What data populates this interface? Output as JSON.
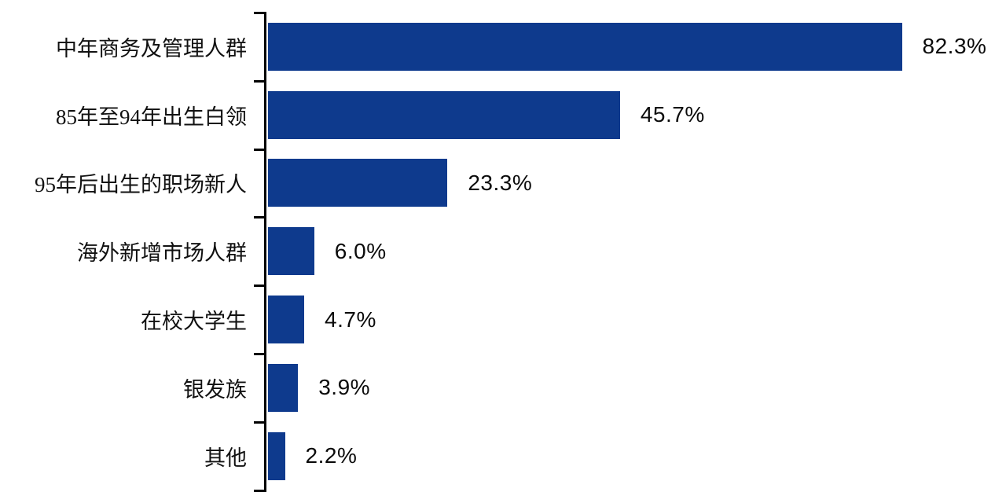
{
  "chart_data": {
    "type": "bar",
    "orientation": "horizontal",
    "title": "",
    "xlabel": "",
    "ylabel": "",
    "categories": [
      "中年商务及管理人群",
      "85年至94年出生白领",
      "95年后出生的职场新人",
      "海外新增市场人群",
      "在校大学生",
      "银发族",
      "其他"
    ],
    "values": [
      82.3,
      45.7,
      23.3,
      6.0,
      4.7,
      3.9,
      2.2
    ],
    "value_labels": [
      "82.3%",
      "45.7%",
      "23.3%",
      "6.0%",
      "4.7%",
      "3.9%",
      "2.2%"
    ],
    "value_label_position": "end-of-bar",
    "xlim": [
      0,
      95
    ],
    "grid": false,
    "legend": false,
    "bar_color": "#0E3A8D",
    "axis_color": "#000000",
    "text_color": "#111111",
    "background_color": "#ffffff"
  }
}
